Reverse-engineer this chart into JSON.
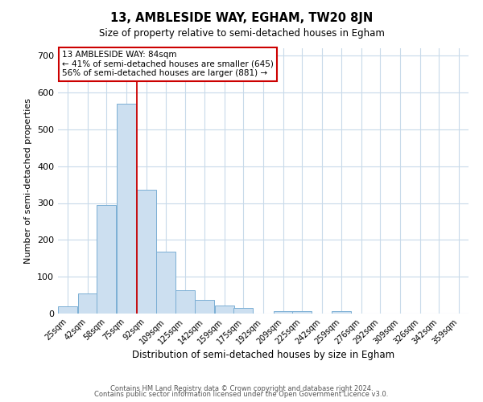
{
  "title": "13, AMBLESIDE WAY, EGHAM, TW20 8JN",
  "subtitle": "Size of property relative to semi-detached houses in Egham",
  "xlabel": "Distribution of semi-detached houses by size in Egham",
  "ylabel": "Number of semi-detached properties",
  "bar_values": [
    20,
    55,
    295,
    570,
    335,
    168,
    63,
    37,
    22,
    15,
    0,
    7,
    7,
    0,
    7,
    0,
    0,
    0,
    0,
    0,
    0
  ],
  "bar_labels": [
    "25sqm",
    "42sqm",
    "58sqm",
    "75sqm",
    "92sqm",
    "109sqm",
    "125sqm",
    "142sqm",
    "159sqm",
    "175sqm",
    "192sqm",
    "209sqm",
    "225sqm",
    "242sqm",
    "259sqm",
    "276sqm",
    "292sqm",
    "309sqm",
    "326sqm",
    "342sqm",
    "359sqm"
  ],
  "bar_color": "#ccdff0",
  "bar_edge_color": "#7bafd4",
  "ylim": [
    0,
    720
  ],
  "yticks": [
    0,
    100,
    200,
    300,
    400,
    500,
    600,
    700
  ],
  "red_line_x": 84,
  "annotation_title": "13 AMBLESIDE WAY: 84sqm",
  "annotation_line1": "← 41% of semi-detached houses are smaller (645)",
  "annotation_line2": "56% of semi-detached houses are larger (881) →",
  "annotation_box_color": "#ffffff",
  "annotation_border_color": "#cc0000",
  "footer1": "Contains HM Land Registry data © Crown copyright and database right 2024.",
  "footer2": "Contains public sector information licensed under the Open Government Licence v3.0.",
  "background_color": "#ffffff",
  "grid_color": "#c8daea"
}
